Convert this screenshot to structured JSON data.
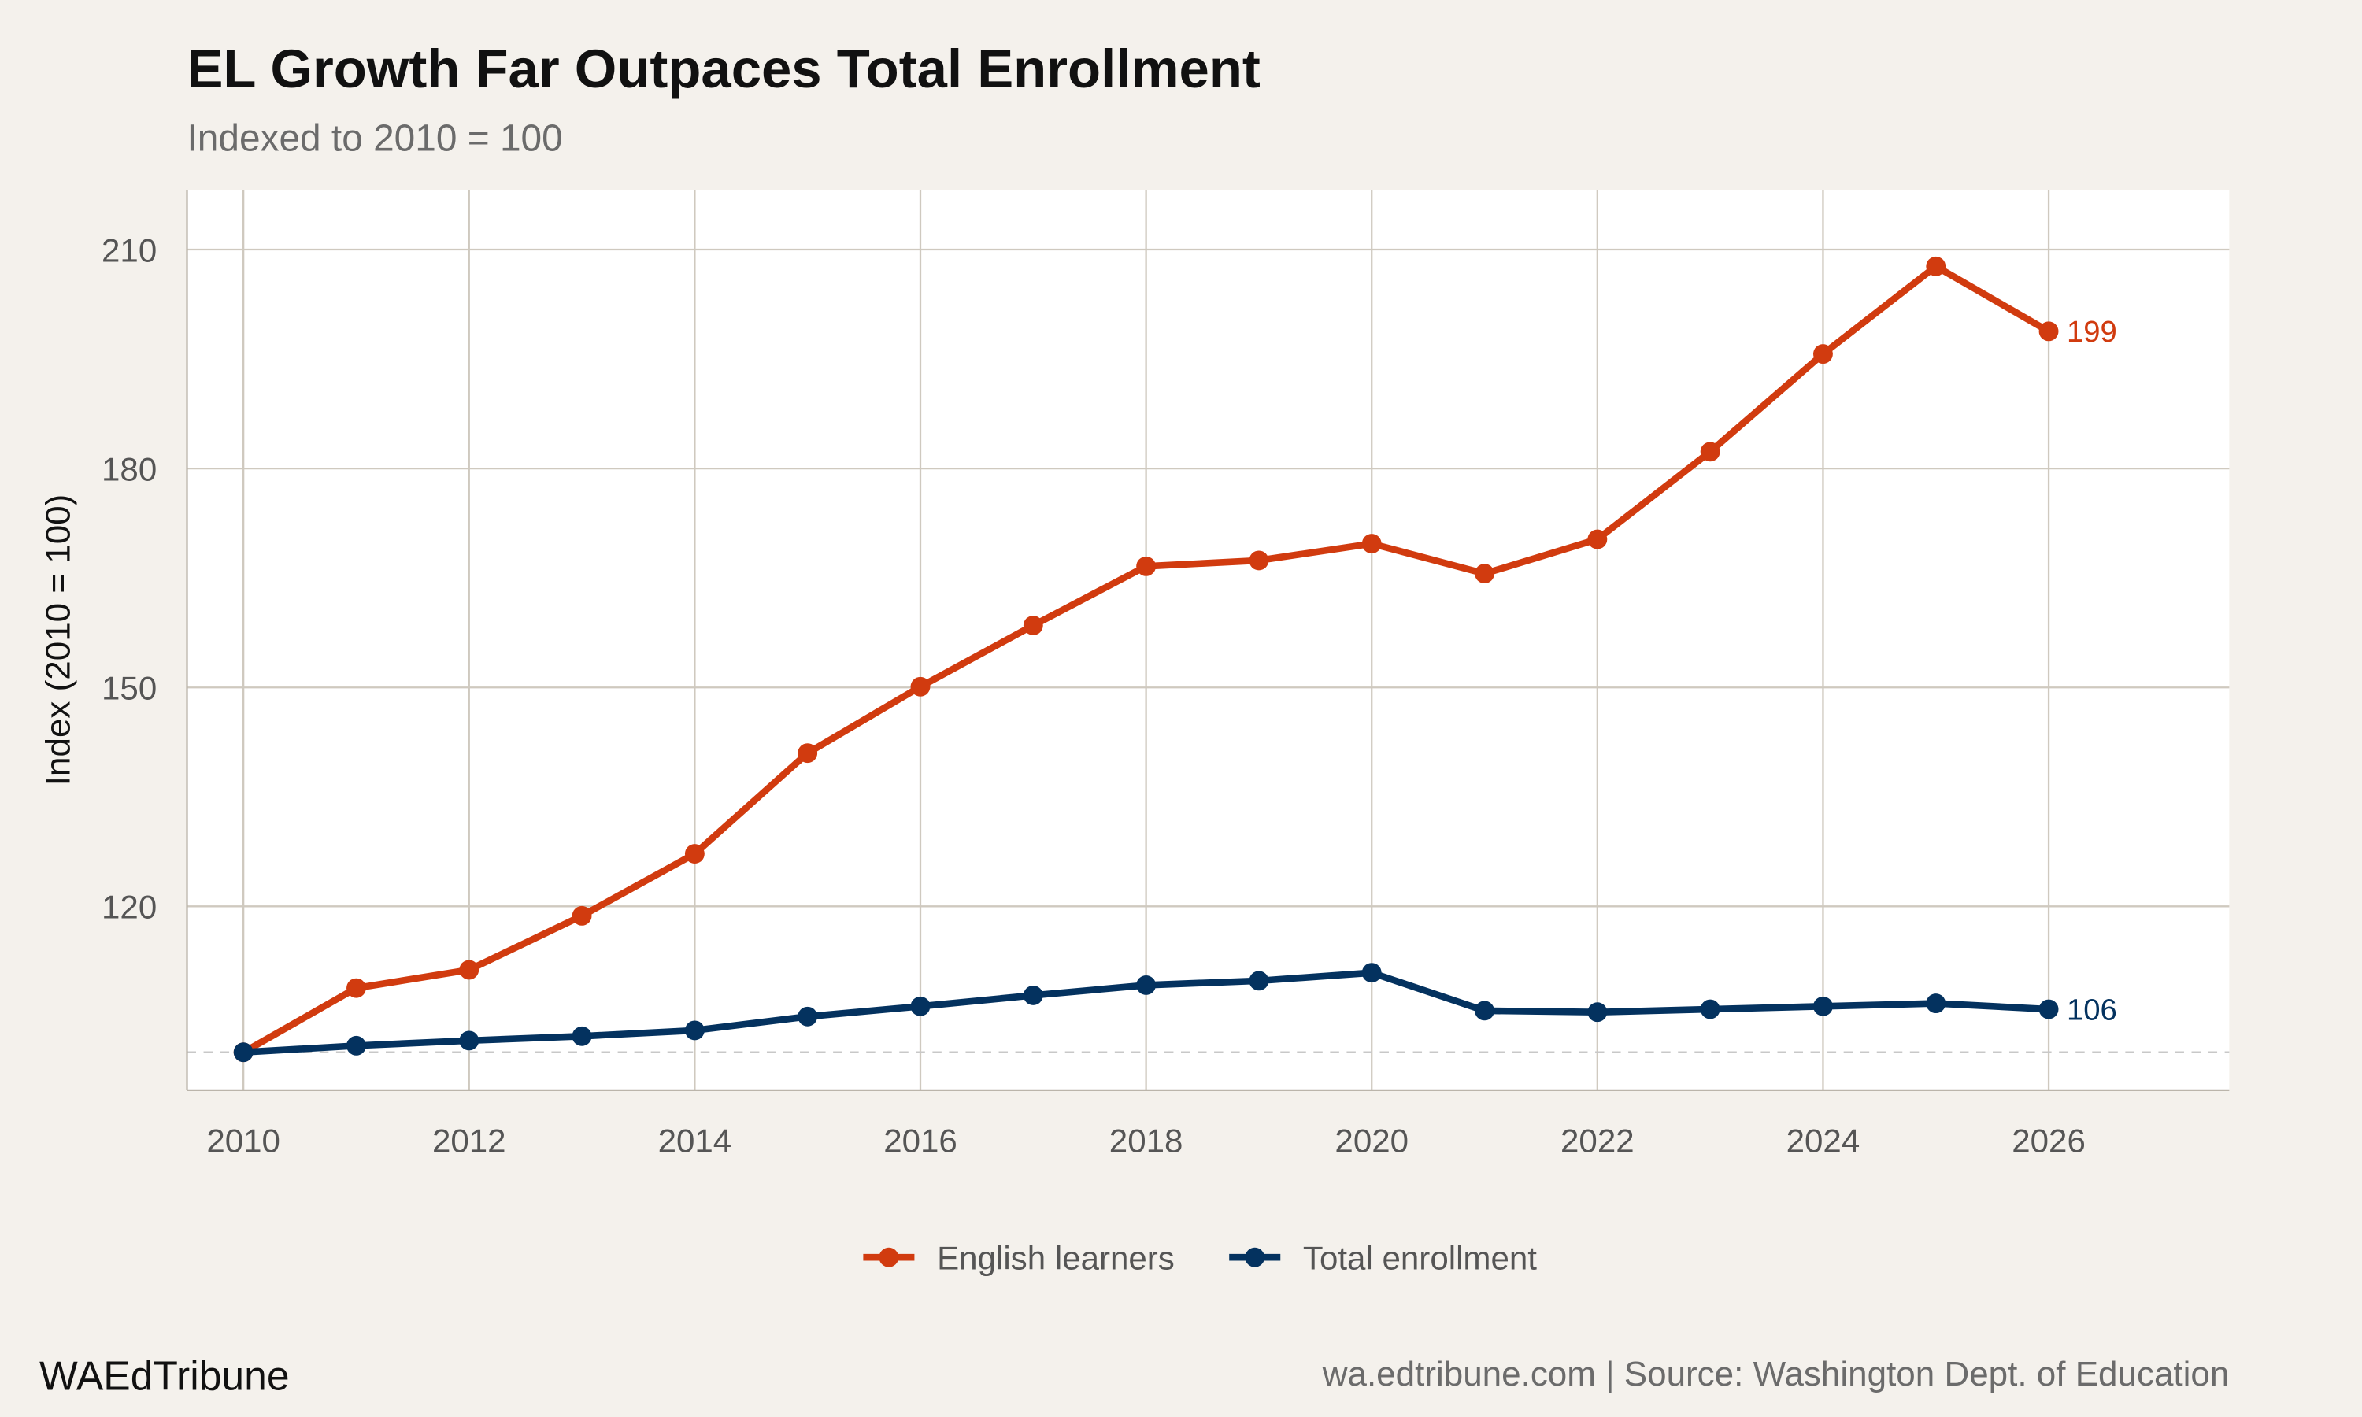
{
  "chart_data": {
    "type": "line",
    "title": "EL Growth Far Outpaces Total Enrollment",
    "subtitle": "Indexed to 2010 = 100",
    "xlabel": "",
    "ylabel": "Index (2010 = 100)",
    "xlim": [
      2009.5,
      2027.6
    ],
    "ylim": [
      94.8,
      218.2
    ],
    "xticks": [
      2010,
      2012,
      2014,
      2016,
      2018,
      2020,
      2022,
      2024,
      2026
    ],
    "yticks": [
      120,
      150,
      180,
      210
    ],
    "grid": true,
    "reference_line": 100,
    "legend_position": "bottom",
    "x": [
      2010,
      2011,
      2012,
      2013,
      2014,
      2015,
      2016,
      2017,
      2018,
      2019,
      2020,
      2021,
      2022,
      2023,
      2024,
      2025,
      2026
    ],
    "series": [
      {
        "name": "English learners",
        "color": "#d13b0f",
        "values": [
          100,
          108.8,
          111.3,
          118.7,
          127.2,
          141.0,
          150.1,
          158.5,
          166.6,
          167.4,
          169.7,
          165.6,
          170.3,
          182.3,
          195.7,
          207.7,
          198.8
        ],
        "end_label": "199"
      },
      {
        "name": "Total enrollment",
        "color": "#04325f",
        "values": [
          100,
          100.9,
          101.6,
          102.2,
          103.0,
          104.9,
          106.3,
          107.8,
          109.2,
          109.8,
          110.9,
          105.7,
          105.5,
          105.9,
          106.3,
          106.7,
          105.9
        ],
        "end_label": "106"
      }
    ]
  },
  "footer": {
    "brand": "WAEdTribune",
    "source": "wa.edtribune.com | Source: Washington Dept. of Education"
  }
}
